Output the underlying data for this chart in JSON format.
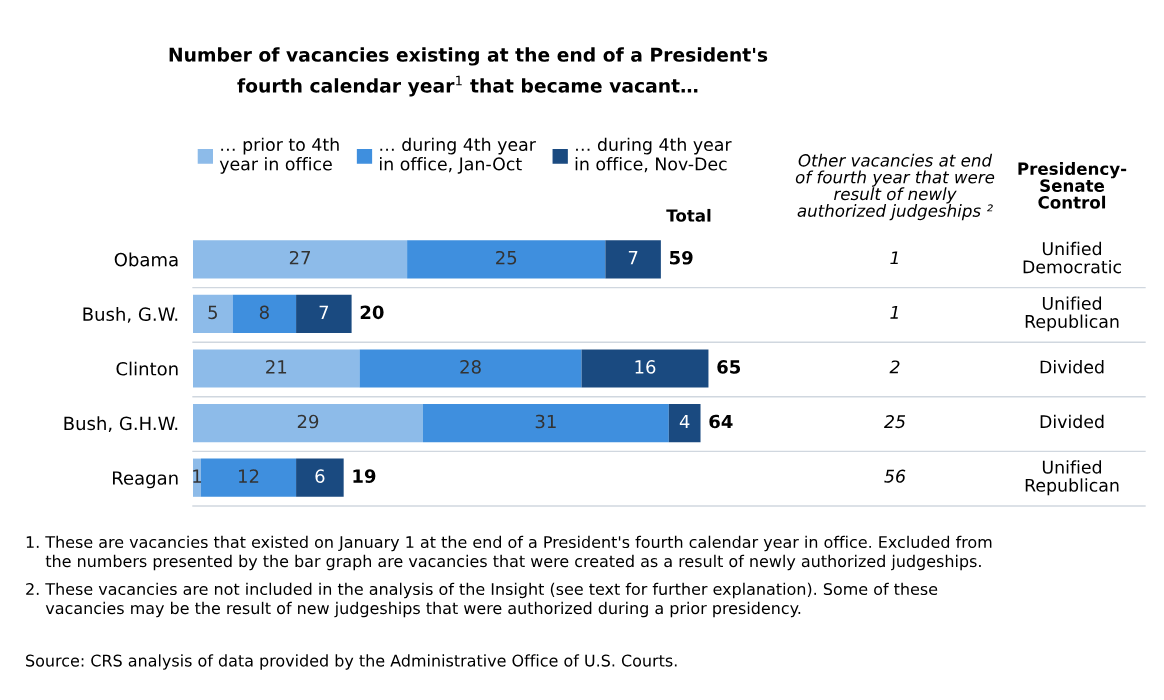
{
  "chart_data": [
    {
      "type": "bar",
      "orientation": "horizontal",
      "stacked": true,
      "data_labels": true,
      "legend": "top",
      "title": "Number of vacancies existing at the end of a President's\nfourth calendar year$^{1}$ that became vacant…",
      "categories": [
        "Obama",
        "Bush, G.W.",
        "Clinton",
        "Bush, G.H.W.",
        "Reagan"
      ],
      "series": [
        {
          "name": "… prior to 4th\nyear in office",
          "color": "#8dbbe9",
          "values": [
            27,
            5,
            21,
            29,
            1
          ]
        },
        {
          "name": "… during 4th year\nin office, Jan-Oct",
          "color": "#3f8fde",
          "values": [
            25,
            8,
            28,
            31,
            12
          ]
        },
        {
          "name": "… during 4th year\nin office, Nov-Dec",
          "color": "#1a4a80",
          "values": [
            7,
            7,
            16,
            4,
            6
          ]
        }
      ],
      "totals": [
        "59",
        "20",
        "65",
        "64",
        "19"
      ],
      "annotations": [
        "Total",
        "1. These are vacancies that existed on January 1 at the end of a President's fourth calendar year in office. Excluded from\n    the numbers presented by the bar graph are vacancies that were created as a result of newly authorized judgeships.",
        "2. These vacancies are not included in the analysis of the Insight (see text for further explanation). Some of these\n    vacancies may be the result of new judgeships that were authorized during a prior presidency.",
        "Source: CRS analysis of data provided by the Administrative Office of U.S. Courts."
      ]
    },
    {
      "type": "other",
      "categories": [
        "Other vacancies at end\nof fourth year that were\nresult of newly\nauthorized judgeships ²",
        "Presidency-\nSenate\nControl"
      ],
      "cell_labels": [
        [
          "1",
          "Unified\nDemocratic"
        ],
        [
          "1",
          "Unified\nRepublican"
        ],
        [
          "2",
          "Divided"
        ],
        [
          "25",
          "Divided"
        ],
        [
          "56",
          "Unified\nRepublican"
        ]
      ]
    }
  ]
}
